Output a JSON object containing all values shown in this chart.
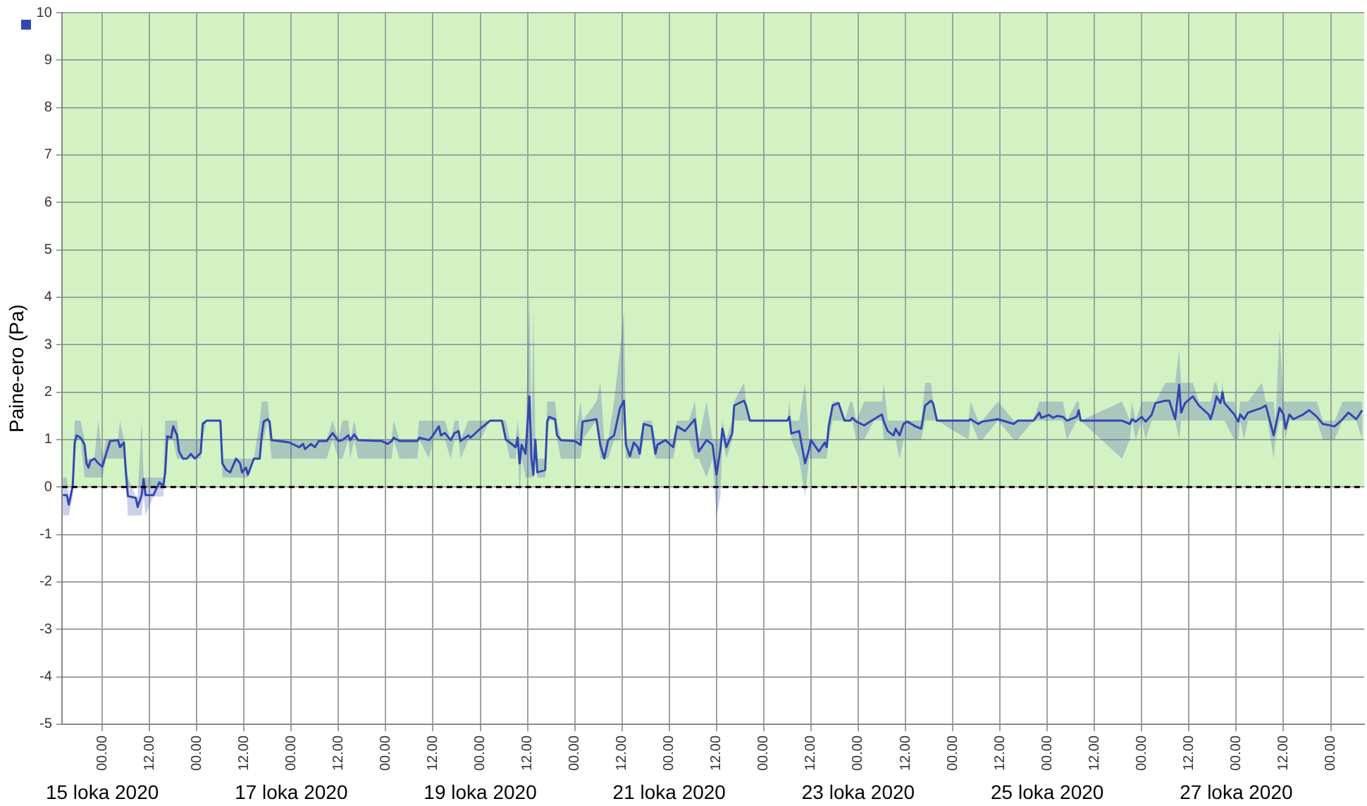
{
  "chart_data": {
    "type": "line",
    "ylabel": "Paine-ero (Pa)",
    "xlim": [
      "2020-10-14T13:45",
      "2020-10-28T08:30"
    ],
    "xticks": [
      {
        "value": "2020-10-15T00:00",
        "label": "00.00"
      },
      {
        "value": "2020-10-15T12:00",
        "label": "12.00"
      },
      {
        "value": "2020-10-16T00:00",
        "label": "00.00"
      },
      {
        "value": "2020-10-16T12:00",
        "label": "12.00"
      },
      {
        "value": "2020-10-17T00:00",
        "label": "00.00"
      },
      {
        "value": "2020-10-17T12:00",
        "label": "12.00"
      },
      {
        "value": "2020-10-18T00:00",
        "label": "00.00"
      },
      {
        "value": "2020-10-18T12:00",
        "label": "12.00"
      },
      {
        "value": "2020-10-19T00:00",
        "label": "00.00"
      },
      {
        "value": "2020-10-19T12:00",
        "label": "12.00"
      },
      {
        "value": "2020-10-20T00:00",
        "label": "00.00"
      },
      {
        "value": "2020-10-20T12:00",
        "label": "12.00"
      },
      {
        "value": "2020-10-21T00:00",
        "label": "00.00"
      },
      {
        "value": "2020-10-21T12:00",
        "label": "12.00"
      },
      {
        "value": "2020-10-22T00:00",
        "label": "00.00"
      },
      {
        "value": "2020-10-22T12:00",
        "label": "12.00"
      },
      {
        "value": "2020-10-23T00:00",
        "label": "00.00"
      },
      {
        "value": "2020-10-23T12:00",
        "label": "12.00"
      },
      {
        "value": "2020-10-24T00:00",
        "label": "00.00"
      },
      {
        "value": "2020-10-24T12:00",
        "label": "12.00"
      },
      {
        "value": "2020-10-25T00:00",
        "label": "00.00"
      },
      {
        "value": "2020-10-25T12:00",
        "label": "12.00"
      },
      {
        "value": "2020-10-26T00:00",
        "label": "00.00"
      },
      {
        "value": "2020-10-26T12:00",
        "label": "12.00"
      },
      {
        "value": "2020-10-27T00:00",
        "label": "00.00"
      },
      {
        "value": "2020-10-27T12:00",
        "label": "12.00"
      },
      {
        "value": "2020-10-28T00:00",
        "label": "00.00"
      }
    ],
    "ylim": [
      -5,
      10
    ],
    "yticks": [
      -5,
      -4,
      -3,
      -2,
      -1,
      0,
      1,
      2,
      3,
      4,
      5,
      6,
      7,
      8,
      9,
      10
    ],
    "grid": true,
    "legend": false,
    "bands": [
      {
        "axis": "y",
        "from": 0,
        "to": 10,
        "color": "#d2f2c3"
      }
    ],
    "ref_lines": [
      {
        "axis": "y",
        "value": 0,
        "color": "#000000",
        "line_style": "dashed"
      }
    ],
    "annotations": [
      "15 loka 2020",
      "17 loka 2020",
      "19 loka 2020",
      "21 loka 2020",
      "23 loka 2020",
      "25 loka 2020",
      "27 loka 2020"
    ],
    "series": [
      {
        "color": "#3347b0",
        "x": [
          "2020-10-14T14:00",
          "2020-10-14T15:00",
          "2020-10-14T15:30",
          "2020-10-14T16:30",
          "2020-10-14T17:00",
          "2020-10-14T17:30",
          "2020-10-14T18:30",
          "2020-10-14T19:30",
          "2020-10-14T20:00",
          "2020-10-14T20:30",
          "2020-10-14T21:00",
          "2020-10-14T22:00",
          "2020-10-14T23:00",
          "2020-10-15T00:00",
          "2020-10-15T01:00",
          "2020-10-15T02:00",
          "2020-10-15T04:00",
          "2020-10-15T04:30",
          "2020-10-15T05:30",
          "2020-10-15T06:00",
          "2020-10-15T06:30",
          "2020-10-15T08:30",
          "2020-10-15T09:00",
          "2020-10-15T10:00",
          "2020-10-15T10:30",
          "2020-10-15T11:00",
          "2020-10-15T13:00",
          "2020-10-15T14:30",
          "2020-10-15T15:30",
          "2020-10-15T16:00",
          "2020-10-15T16:30",
          "2020-10-15T17:30",
          "2020-10-15T18:00",
          "2020-10-15T19:00",
          "2020-10-15T19:30",
          "2020-10-15T20:30",
          "2020-10-15T21:30",
          "2020-10-15T22:30",
          "2020-10-15T23:30",
          "2020-10-16T01:00",
          "2020-10-16T01:30",
          "2020-10-16T02:30",
          "2020-10-16T06:00",
          "2020-10-16T06:30",
          "2020-10-16T07:30",
          "2020-10-16T08:30",
          "2020-10-16T10:00",
          "2020-10-16T11:00",
          "2020-10-16T11:30",
          "2020-10-16T12:30",
          "2020-10-16T13:00",
          "2020-10-16T14:30",
          "2020-10-16T16:00",
          "2020-10-16T16:30",
          "2020-10-16T17:00",
          "2020-10-16T18:00",
          "2020-10-16T18:30",
          "2020-10-16T19:00",
          "2020-10-16T21:00",
          "2020-10-16T23:30",
          "2020-10-17T02:00",
          "2020-10-17T03:00",
          "2020-10-17T03:30",
          "2020-10-17T05:00",
          "2020-10-17T06:00",
          "2020-10-17T07:00",
          "2020-10-17T09:00",
          "2020-10-17T10:30",
          "2020-10-17T12:00",
          "2020-10-17T13:00",
          "2020-10-17T14:30",
          "2020-10-17T15:00",
          "2020-10-17T16:00",
          "2020-10-17T17:00",
          "2020-10-17T23:00",
          "2020-10-18T00:30",
          "2020-10-18T01:30",
          "2020-10-18T02:00",
          "2020-10-18T03:30",
          "2020-10-18T08:00",
          "2020-10-18T08:30",
          "2020-10-18T11:00",
          "2020-10-18T12:00",
          "2020-10-18T13:30",
          "2020-10-18T14:00",
          "2020-10-18T15:00",
          "2020-10-18T16:30",
          "2020-10-18T17:30",
          "2020-10-18T18:30",
          "2020-10-18T19:00",
          "2020-10-18T21:00",
          "2020-10-18T21:30",
          "2020-10-19T00:00",
          "2020-10-19T02:30",
          "2020-10-19T05:30",
          "2020-10-19T06:30",
          "2020-10-19T07:30",
          "2020-10-19T09:00",
          "2020-10-19T09:30",
          "2020-10-19T10:00",
          "2020-10-19T10:30",
          "2020-10-19T11:30",
          "2020-10-19T12:30",
          "2020-10-19T13:00",
          "2020-10-19T13:30",
          "2020-10-19T14:00",
          "2020-10-19T14:30",
          "2020-10-19T16:30",
          "2020-10-19T17:00",
          "2020-10-19T17:30",
          "2020-10-19T19:00",
          "2020-10-19T19:30",
          "2020-10-19T20:30",
          "2020-10-20T00:00",
          "2020-10-20T01:30",
          "2020-10-20T02:00",
          "2020-10-20T05:30",
          "2020-10-20T06:30",
          "2020-10-20T07:30",
          "2020-10-20T08:30",
          "2020-10-20T10:00",
          "2020-10-20T11:30",
          "2020-10-20T12:30",
          "2020-10-20T13:00",
          "2020-10-20T14:00",
          "2020-10-20T15:00",
          "2020-10-20T16:00",
          "2020-10-20T16:30",
          "2020-10-20T17:30",
          "2020-10-20T19:30",
          "2020-10-20T20:30",
          "2020-10-20T21:00",
          "2020-10-20T23:00",
          "2020-10-21T01:00",
          "2020-10-21T02:00",
          "2020-10-21T04:00",
          "2020-10-21T05:00",
          "2020-10-21T06:30",
          "2020-10-21T07:30",
          "2020-10-21T09:30",
          "2020-10-21T11:00",
          "2020-10-21T12:00",
          "2020-10-21T13:00",
          "2020-10-21T13:30",
          "2020-10-21T14:30",
          "2020-10-21T16:00",
          "2020-10-21T16:30",
          "2020-10-21T19:00",
          "2020-10-21T19:30",
          "2020-10-21T20:30",
          "2020-10-22T06:00",
          "2020-10-22T06:30",
          "2020-10-22T07:00",
          "2020-10-22T09:00",
          "2020-10-22T10:30",
          "2020-10-22T11:30",
          "2020-10-22T12:00",
          "2020-10-22T14:00",
          "2020-10-22T15:30",
          "2020-10-22T16:00",
          "2020-10-22T16:30",
          "2020-10-22T17:30",
          "2020-10-22T19:00",
          "2020-10-22T20:30",
          "2020-10-22T22:00",
          "2020-10-22T22:30",
          "2020-10-22T23:30",
          "2020-10-23T01:30",
          "2020-10-23T04:00",
          "2020-10-23T06:00",
          "2020-10-23T06:30",
          "2020-10-23T07:30",
          "2020-10-23T09:00",
          "2020-10-23T09:30",
          "2020-10-23T10:30",
          "2020-10-23T11:30",
          "2020-10-23T12:30",
          "2020-10-23T14:30",
          "2020-10-23T16:00",
          "2020-10-23T17:00",
          "2020-10-23T18:30",
          "2020-10-23T19:00",
          "2020-10-23T20:00",
          "2020-10-24T04:00",
          "2020-10-24T04:30",
          "2020-10-24T06:30",
          "2020-10-24T07:30",
          "2020-10-24T11:30",
          "2020-10-24T15:30",
          "2020-10-24T16:30",
          "2020-10-24T20:30",
          "2020-10-24T22:00",
          "2020-10-24T22:30",
          "2020-10-25T00:30",
          "2020-10-25T01:30",
          "2020-10-25T02:30",
          "2020-10-25T04:00",
          "2020-10-25T05:00",
          "2020-10-25T07:30",
          "2020-10-25T08:00",
          "2020-10-25T08:30",
          "2020-10-25T19:00",
          "2020-10-25T21:00",
          "2020-10-25T21:30",
          "2020-10-25T22:30",
          "2020-10-26T00:00",
          "2020-10-26T01:00",
          "2020-10-26T02:30",
          "2020-10-26T03:30",
          "2020-10-26T06:00",
          "2020-10-26T07:00",
          "2020-10-26T08:30",
          "2020-10-26T09:30",
          "2020-10-26T10:00",
          "2020-10-26T11:00",
          "2020-10-26T13:00",
          "2020-10-26T14:30",
          "2020-10-26T17:00",
          "2020-10-26T17:30",
          "2020-10-26T18:30",
          "2020-10-26T19:00",
          "2020-10-26T20:00",
          "2020-10-26T20:30",
          "2020-10-26T21:00",
          "2020-10-26T23:30",
          "2020-10-27T00:30",
          "2020-10-27T01:00",
          "2020-10-27T02:00",
          "2020-10-27T03:00",
          "2020-10-27T06:30",
          "2020-10-27T07:30",
          "2020-10-27T08:00",
          "2020-10-27T09:30",
          "2020-10-27T10:00",
          "2020-10-27T11:00",
          "2020-10-27T12:00",
          "2020-10-27T12:30",
          "2020-10-27T13:30",
          "2020-10-27T14:30",
          "2020-10-27T17:00",
          "2020-10-27T18:30",
          "2020-10-27T20:30",
          "2020-10-27T22:00",
          "2020-10-28T01:00",
          "2020-10-28T03:00",
          "2020-10-28T04:30",
          "2020-10-28T06:30",
          "2020-10-28T08:00"
        ],
        "values": [
          -0.17,
          -0.17,
          -0.37,
          0.02,
          0.94,
          1.09,
          1.04,
          0.9,
          0.5,
          0.41,
          0.55,
          0.6,
          0.5,
          0.43,
          0.7,
          0.97,
          0.99,
          0.84,
          0.94,
          0.31,
          -0.19,
          -0.23,
          -0.42,
          -0.17,
          0.17,
          -0.17,
          -0.17,
          0.1,
          0.02,
          0.31,
          1.07,
          1.04,
          1.28,
          1.09,
          0.75,
          0.6,
          0.6,
          0.7,
          0.6,
          0.72,
          1.33,
          1.4,
          1.4,
          0.5,
          0.36,
          0.31,
          0.6,
          0.5,
          0.31,
          0.41,
          0.26,
          0.6,
          0.6,
          1.09,
          1.38,
          1.43,
          1.38,
          0.99,
          0.97,
          0.94,
          0.84,
          0.91,
          0.8,
          0.91,
          0.84,
          0.97,
          0.97,
          1.14,
          0.97,
          0.99,
          1.09,
          0.99,
          1.11,
          0.99,
          0.97,
          0.91,
          0.97,
          1.04,
          0.97,
          0.97,
          1.04,
          0.99,
          1.09,
          1.28,
          1.09,
          1.14,
          0.99,
          1.14,
          1.18,
          0.97,
          1.09,
          1.04,
          1.23,
          1.4,
          1.4,
          1.0,
          0.94,
          0.84,
          1.04,
          0.5,
          0.89,
          0.7,
          1.91,
          0.6,
          0.26,
          1.0,
          0.31,
          0.36,
          1.38,
          1.48,
          1.43,
          1.09,
          0.99,
          0.97,
          0.89,
          1.38,
          1.43,
          0.89,
          0.6,
          0.99,
          1.09,
          1.67,
          1.82,
          0.89,
          0.65,
          0.94,
          0.84,
          0.7,
          1.33,
          1.28,
          0.7,
          0.89,
          0.99,
          0.84,
          1.28,
          1.18,
          1.28,
          1.43,
          0.75,
          0.99,
          0.89,
          0.26,
          0.8,
          1.23,
          0.84,
          1.13,
          1.72,
          1.82,
          1.72,
          1.4,
          1.4,
          1.48,
          1.13,
          1.18,
          0.5,
          0.79,
          0.99,
          0.75,
          0.94,
          0.84,
          1.28,
          1.72,
          1.77,
          1.4,
          1.4,
          1.46,
          1.38,
          1.3,
          1.43,
          1.53,
          1.38,
          1.18,
          1.09,
          1.23,
          1.09,
          1.33,
          1.38,
          1.28,
          1.23,
          1.72,
          1.82,
          1.77,
          1.4,
          1.4,
          1.43,
          1.33,
          1.38,
          1.43,
          1.33,
          1.4,
          1.4,
          1.57,
          1.46,
          1.52,
          1.46,
          1.5,
          1.48,
          1.4,
          1.48,
          1.62,
          1.4,
          1.4,
          1.33,
          1.43,
          1.38,
          1.48,
          1.38,
          1.52,
          1.77,
          1.82,
          1.82,
          1.43,
          2.16,
          1.57,
          1.77,
          1.91,
          1.72,
          1.53,
          1.43,
          1.72,
          1.91,
          1.77,
          2.0,
          1.77,
          1.53,
          1.38,
          1.53,
          1.43,
          1.57,
          1.67,
          1.72,
          1.57,
          1.09,
          1.28,
          1.67,
          1.53,
          1.23,
          1.53,
          1.43,
          1.53,
          1.62,
          1.48,
          1.33,
          1.28,
          1.43,
          1.57,
          1.43,
          1.62
        ],
        "lower": [
          -0.6,
          -0.6,
          -0.6,
          -0.2,
          0.6,
          1.0,
          1.0,
          0.2,
          0.2,
          0.2,
          0.2,
          0.2,
          0.2,
          0.2,
          0.6,
          0.6,
          0.6,
          0.6,
          0.6,
          0.2,
          -0.6,
          -0.6,
          -0.6,
          -0.6,
          -0.2,
          -0.6,
          -0.2,
          -0.2,
          -0.2,
          0.2,
          1.0,
          1.0,
          1.0,
          0.6,
          0.6,
          0.6,
          0.6,
          0.6,
          0.6,
          0.6,
          1.0,
          1.4,
          1.4,
          0.2,
          0.2,
          0.2,
          0.2,
          0.2,
          0.2,
          0.2,
          0.2,
          0.6,
          0.6,
          1.0,
          1.0,
          1.4,
          1.0,
          0.6,
          0.6,
          0.6,
          0.6,
          0.6,
          0.6,
          0.6,
          0.6,
          0.6,
          0.6,
          1.0,
          0.6,
          0.6,
          1.0,
          0.6,
          1.0,
          0.6,
          0.6,
          0.6,
          0.6,
          1.0,
          0.6,
          0.6,
          1.0,
          0.6,
          1.0,
          1.0,
          1.0,
          1.0,
          0.6,
          1.0,
          1.0,
          0.6,
          1.0,
          1.0,
          1.0,
          1.4,
          1.4,
          1.0,
          0.6,
          0.6,
          1.0,
          -0.2,
          0.6,
          0.2,
          0.2,
          0.2,
          0.2,
          0.6,
          0.2,
          0.2,
          1.0,
          1.4,
          1.4,
          1.0,
          0.6,
          0.6,
          0.6,
          1.0,
          1.4,
          0.6,
          0.6,
          0.6,
          1.0,
          1.0,
          1.4,
          0.6,
          0.6,
          0.6,
          0.6,
          0.6,
          1.0,
          1.0,
          0.6,
          0.6,
          0.6,
          0.6,
          1.0,
          1.0,
          1.0,
          0.6,
          0.6,
          0.2,
          0.6,
          -0.6,
          -0.2,
          1.0,
          0.6,
          1.0,
          1.4,
          1.4,
          1.4,
          1.4,
          1.4,
          1.4,
          1.0,
          0.6,
          -0.2,
          0.6,
          0.6,
          0.6,
          0.6,
          0.6,
          1.0,
          1.4,
          1.4,
          1.4,
          1.4,
          1.4,
          1.0,
          1.0,
          1.4,
          1.4,
          1.0,
          1.0,
          1.0,
          1.0,
          0.6,
          1.0,
          1.0,
          1.0,
          1.0,
          1.4,
          1.4,
          1.4,
          1.4,
          1.0,
          1.4,
          1.0,
          1.0,
          1.4,
          1.0,
          1.0,
          1.4,
          1.4,
          1.4,
          1.4,
          1.4,
          1.4,
          1.4,
          1.0,
          1.4,
          1.4,
          1.4,
          0.6,
          1.0,
          1.4,
          1.0,
          1.4,
          1.0,
          1.4,
          1.4,
          1.4,
          1.4,
          1.4,
          1.0,
          1.4,
          1.4,
          1.4,
          1.4,
          1.4,
          1.4,
          1.4,
          1.4,
          1.4,
          1.4,
          1.4,
          1.0,
          1.0,
          1.4,
          1.0,
          1.4,
          1.4,
          1.4,
          1.4,
          0.6,
          1.0,
          1.4,
          1.4,
          1.0,
          1.4,
          1.4,
          1.4,
          1.4,
          1.4,
          1.0,
          1.0,
          1.4,
          1.4,
          1.4,
          1.0
        ],
        "upper": [
          0.2,
          0.2,
          -0.2,
          0.2,
          1.4,
          1.4,
          1.4,
          1.0,
          0.6,
          0.6,
          0.6,
          0.6,
          1.4,
          0.6,
          1.0,
          1.0,
          1.0,
          1.4,
          1.0,
          0.6,
          0.2,
          -0.2,
          -0.2,
          1.4,
          0.2,
          0.2,
          0.2,
          0.2,
          0.2,
          1.4,
          1.4,
          1.4,
          1.4,
          1.4,
          1.0,
          1.0,
          1.0,
          1.0,
          1.0,
          1.0,
          1.4,
          1.4,
          1.4,
          0.6,
          0.6,
          0.6,
          0.6,
          0.6,
          0.6,
          0.6,
          0.6,
          0.6,
          1.4,
          1.8,
          1.8,
          1.8,
          1.4,
          1.0,
          1.0,
          1.0,
          1.0,
          1.0,
          1.0,
          1.0,
          1.0,
          1.0,
          1.0,
          1.4,
          1.0,
          1.4,
          1.4,
          1.0,
          1.4,
          1.0,
          1.0,
          1.0,
          1.0,
          1.4,
          1.0,
          1.0,
          1.4,
          1.4,
          1.4,
          1.4,
          1.4,
          1.4,
          1.0,
          1.4,
          1.4,
          1.0,
          1.4,
          1.4,
          1.4,
          1.4,
          1.4,
          1.4,
          1.0,
          1.0,
          1.4,
          1.0,
          1.0,
          1.0,
          4.1,
          1.0,
          3.7,
          1.0,
          0.6,
          0.6,
          1.8,
          1.8,
          1.8,
          1.4,
          1.0,
          1.0,
          1.8,
          1.4,
          1.8,
          2.2,
          1.0,
          1.0,
          1.8,
          2.9,
          3.7,
          1.0,
          1.0,
          1.0,
          1.0,
          1.0,
          1.4,
          1.4,
          1.0,
          1.0,
          1.0,
          1.0,
          1.4,
          1.4,
          1.4,
          1.8,
          1.0,
          1.8,
          1.0,
          1.0,
          1.0,
          1.4,
          1.0,
          1.4,
          1.8,
          2.2,
          1.8,
          1.4,
          1.4,
          1.8,
          1.4,
          1.4,
          2.2,
          1.0,
          1.0,
          1.0,
          1.0,
          1.0,
          1.4,
          1.8,
          1.8,
          1.4,
          1.8,
          1.8,
          1.4,
          1.8,
          1.8,
          1.8,
          2.2,
          1.4,
          1.4,
          1.4,
          1.4,
          1.4,
          1.4,
          1.4,
          1.4,
          2.2,
          2.2,
          1.8,
          1.4,
          1.4,
          1.8,
          1.4,
          1.4,
          1.8,
          1.4,
          1.4,
          1.4,
          1.8,
          1.8,
          1.8,
          1.8,
          1.8,
          1.8,
          1.4,
          1.8,
          1.8,
          1.4,
          1.8,
          1.4,
          1.8,
          1.4,
          1.8,
          1.8,
          1.8,
          1.8,
          2.2,
          2.2,
          2.2,
          2.9,
          2.2,
          2.2,
          2.2,
          1.8,
          1.8,
          1.8,
          2.2,
          2.2,
          1.8,
          2.2,
          1.8,
          1.8,
          1.4,
          1.8,
          1.8,
          1.8,
          2.2,
          1.8,
          1.8,
          1.8,
          1.4,
          3.3,
          1.8,
          1.8,
          1.8,
          1.8,
          1.8,
          1.8,
          1.8,
          1.4,
          1.4,
          1.8,
          1.8,
          1.8,
          1.8
        ]
      }
    ]
  }
}
